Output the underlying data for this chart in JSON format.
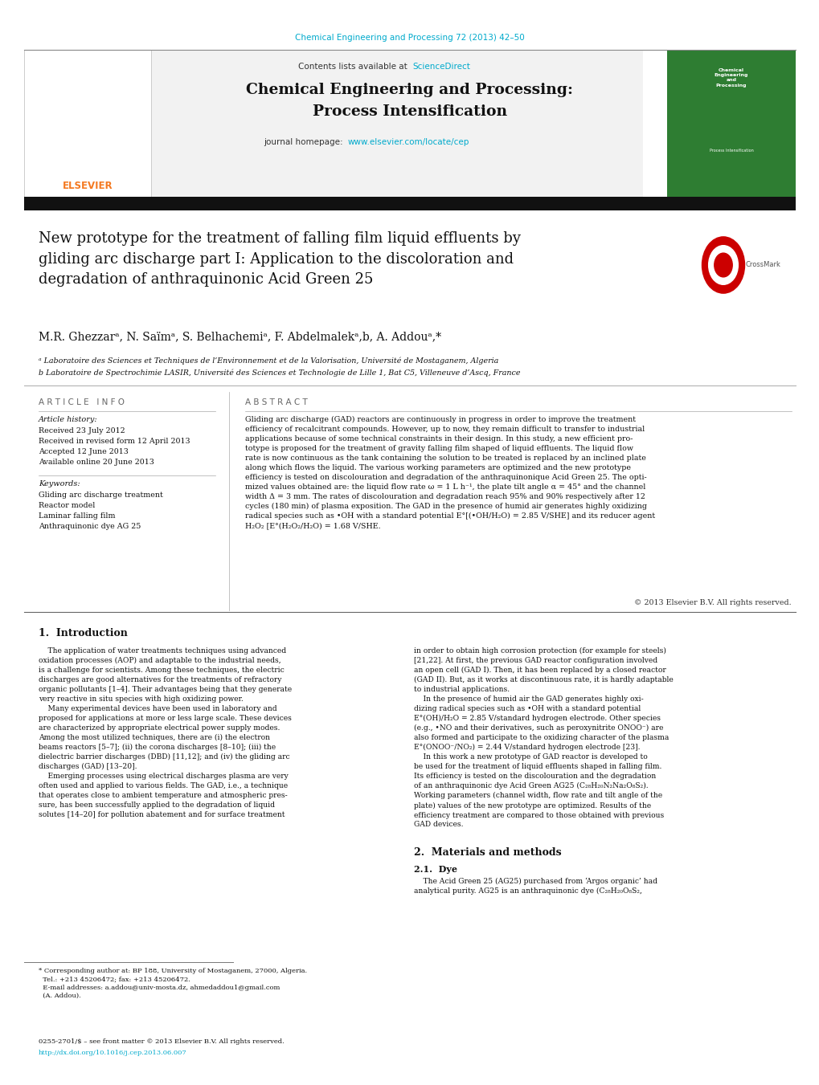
{
  "page_width": 10.2,
  "page_height": 13.51,
  "bg_color": "#ffffff",
  "top_citation": "Chemical Engineering and Processing 72 (2013) 42–50",
  "top_citation_color": "#00aacc",
  "journal_header_bg": "#f0f0f0",
  "journal_homepage_link": "www.elsevier.com/locate/cep",
  "link_color": "#00aacc",
  "article_title": "New prototype for the treatment of falling film liquid effluents by\ngliding arc discharge part I: Application to the discoloration and\ndegradation of anthraquinonic Acid Green 25",
  "authors": "M.R. Ghezzarᵃ, N. Saïmᵃ, S. Belhachemiᵃ, F. Abdelmalekᵃ,b, A. Addouᵃ,*",
  "affil_a": "ᵃ Laboratoire des Sciences et Techniques de l’Environnement et de la Valorisation, Université de Mostaganem, Algeria",
  "affil_b": "b Laboratoire de Spectrochimie LASIR, Université des Sciences et Technologie de Lille 1, Bat C5, Villeneuve d’Ascq, France",
  "article_info_header": "A R T I C L E   I N F O",
  "article_history_label": "Article history:",
  "article_history": [
    "Received 23 July 2012",
    "Received in revised form 12 April 2013",
    "Accepted 12 June 2013",
    "Available online 20 June 2013"
  ],
  "keywords_label": "Keywords:",
  "keywords": [
    "Gliding arc discharge treatment",
    "Reactor model",
    "Laminar falling film",
    "Anthraquinonic dye AG 25"
  ],
  "abstract_header": "A B S T R A C T",
  "abstract_text": "Gliding arc discharge (GAD) reactors are continuously in progress in order to improve the treatment\nefficiency of recalcitrant compounds. However, up to now, they remain difficult to transfer to industrial\napplications because of some technical constraints in their design. In this study, a new efficient pro-\ntotype is proposed for the treatment of gravity falling film shaped of liquid effluents. The liquid flow\nrate is now continuous as the tank containing the solution to be treated is replaced by an inclined plate\nalong which flows the liquid. The various working parameters are optimized and the new prototype\nefficiency is tested on discolouration and degradation of the anthraquinonique Acid Green 25. The opti-\nmized values obtained are: the liquid flow rate ω = 1 L h⁻¹, the plate tilt angle α = 45° and the channel\nwidth Δ = 3 mm. The rates of discolouration and degradation reach 95% and 90% respectively after 12\ncycles (180 min) of plasma exposition. The GAD in the presence of humid air generates highly oxidizing\nradical species such as •OH with a standard potential E°[(•OH/H₂O) = 2.85 V/SHE] and its reducer agent\nH₂O₂ [E°(H₂O₂/H₂O) = 1.68 V/SHE.",
  "copyright_text": "© 2013 Elsevier B.V. All rights reserved.",
  "intro_header": "1.  Introduction",
  "intro_text_left": "    The application of water treatments techniques using advanced\noxidation processes (AOP) and adaptable to the industrial needs,\nis a challenge for scientists. Among these techniques, the electric\ndischarges are good alternatives for the treatments of refractory\norganic pollutants [1–4]. Their advantages being that they generate\nvery reactive in situ species with high oxidizing power.\n    Many experimental devices have been used in laboratory and\nproposed for applications at more or less large scale. These devices\nare characterized by appropriate electrical power supply modes.\nAmong the most utilized techniques, there are (i) the electron\nbeams reactors [5–7]; (ii) the corona discharges [8–10]; (iii) the\ndielectric barrier discharges (DBD) [11,12]; and (iv) the gliding arc\ndischarges (GAD) [13–20].\n    Emerging processes using electrical discharges plasma are very\noften used and applied to various fields. The GAD, i.e., a technique\nthat operates close to ambient temperature and atmospheric pres-\nsure, has been successfully applied to the degradation of liquid\nsolutes [14–20] for pollution abatement and for surface treatment",
  "intro_text_right": "in order to obtain high corrosion protection (for example for steels)\n[21,22]. At first, the previous GAD reactor configuration involved\nan open cell (GAD I). Then, it has been replaced by a closed reactor\n(GAD II). But, as it works at discontinuous rate, it is hardly adaptable\nto industrial applications.\n    In the presence of humid air the GAD generates highly oxi-\ndizing radical species such as •OH with a standard potential\nE°(OH)/H₂O = 2.85 V/standard hydrogen electrode. Other species\n(e.g., •NO and their derivatives, such as peroxynitrite ONOO⁻) are\nalso formed and participate to the oxidizing character of the plasma\nE°(ONOO⁻/NO₂) = 2.44 V/standard hydrogen electrode [23].\n    In this work a new prototype of GAD reactor is developed to\nbe used for the treatment of liquid effluents shaped in falling film.\nIts efficiency is tested on the discolouration and the degradation\nof an anthraquinonic dye Acid Green AG25 (C₂₈H₂₀N₂Na₂O₈S₂).\nWorking parameters (channel width, flow rate and tilt angle of the\nplate) values of the new prototype are optimized. Results of the\nefficiency treatment are compared to those obtained with previous\nGAD devices.",
  "section2_header": "2.  Materials and methods",
  "section21_header": "2.1.  Dye",
  "section21_text": "    The Acid Green 25 (AG25) purchased from ‘Argos organic’ had\nanalytical purity. AG25 is an anthraquinonic dye (C₂₈H₂₀O₈S₂,",
  "footnote_text": "* Corresponding author at: BP 188, University of Mostaganem, 27000, Algeria.\n  Tel.: +213 45206472; fax: +213 45206472.\n  E-mail addresses: a.addou@univ-mosta.dz, ahmedaddou1@gmail.com\n  (A. Addou).",
  "issn_line1": "0255-2701/$ – see front matter © 2013 Elsevier B.V. All rights reserved.",
  "issn_line2": "http://dx.doi.org/10.1016/j.cep.2013.06.007"
}
